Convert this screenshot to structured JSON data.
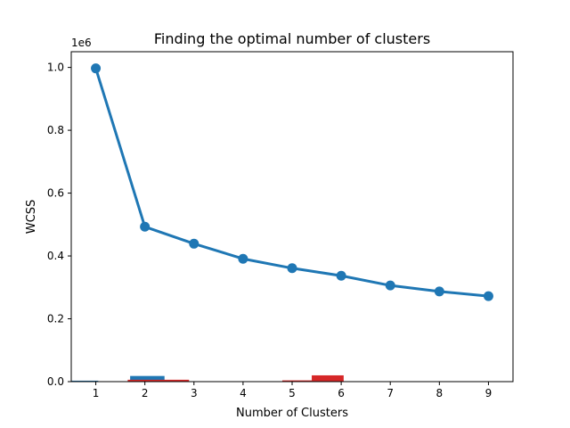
{
  "chart_data": {
    "type": "line",
    "title": "Finding the optimal number of clusters",
    "xlabel": "Number of Clusters",
    "ylabel": "WCSS",
    "y_offset_label": "1e6",
    "x": [
      1,
      2,
      3,
      4,
      5,
      6,
      7,
      8,
      9
    ],
    "x_tick_labels": [
      "1",
      "2",
      "3",
      "4",
      "5",
      "6",
      "7",
      "8",
      "9"
    ],
    "xlim": [
      0.5,
      9.5
    ],
    "ylim": [
      0,
      1.05
    ],
    "y_ticks": [
      0.0,
      0.2,
      0.4,
      0.6,
      0.8,
      1.0
    ],
    "y_tick_labels": [
      "0.0",
      "0.2",
      "0.4",
      "0.6",
      "0.8",
      "1.0"
    ],
    "series": [
      {
        "values": [
          0.997,
          0.493,
          0.439,
          0.391,
          0.361,
          0.337,
          0.306,
          0.287,
          0.272
        ],
        "color": "#1f77b4",
        "marker": "circle"
      }
    ],
    "bars": [
      {
        "x_start": 0.45,
        "x_end": 1.05,
        "value": 0.003,
        "color": "#1f77b4"
      },
      {
        "x_start": 1.7,
        "x_end": 2.4,
        "value": 0.018,
        "color": "#1f77b4"
      },
      {
        "x_start": 1.65,
        "x_end": 2.9,
        "value": 0.006,
        "color": "#d62728"
      },
      {
        "x_start": 4.8,
        "x_end": 5.4,
        "value": 0.004,
        "color": "#d62728"
      },
      {
        "x_start": 5.4,
        "x_end": 6.05,
        "value": 0.02,
        "color": "#d62728"
      }
    ],
    "grid": false
  }
}
